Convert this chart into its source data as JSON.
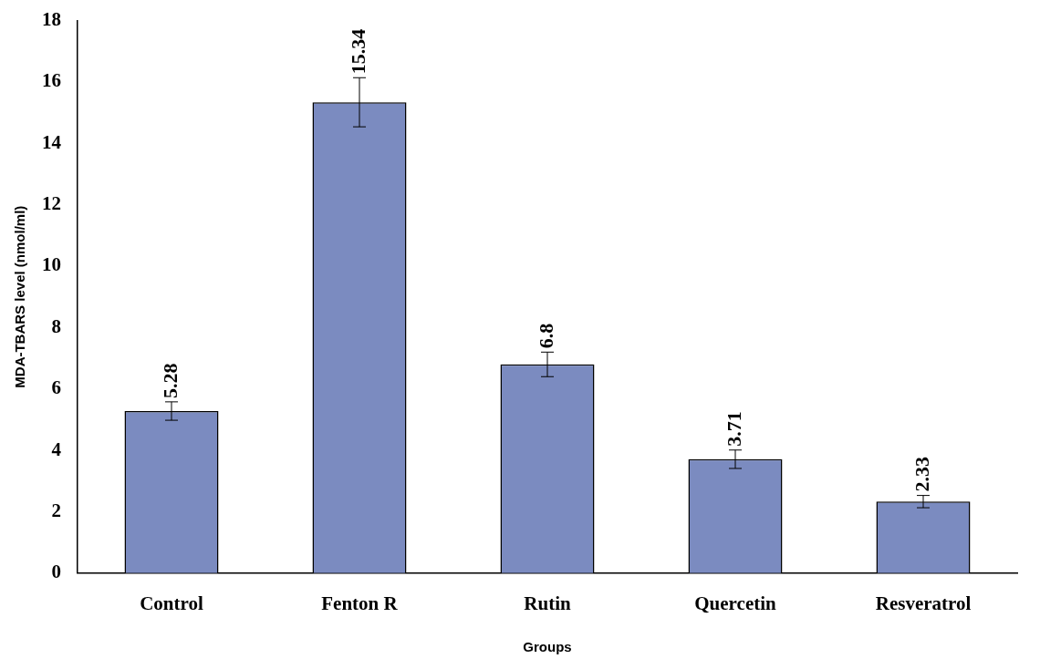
{
  "chart_data": {
    "type": "bar",
    "xlabel": "Groups",
    "ylabel": "MDA-TBARS level (nmol/ml)",
    "categories": [
      "Control",
      "Fenton R",
      "Rutin",
      "Quercetin",
      "Resveratrol"
    ],
    "values": [
      5.28,
      15.34,
      6.8,
      3.71,
      2.33
    ],
    "errors": [
      0.3,
      0.8,
      0.4,
      0.3,
      0.2
    ],
    "color": "#7b8bc0",
    "ylim": [
      0,
      18
    ],
    "yticks": [
      0,
      2,
      4,
      6,
      8,
      10,
      12,
      14,
      16,
      18
    ],
    "grid": false,
    "legend": false,
    "data_labels": true
  }
}
